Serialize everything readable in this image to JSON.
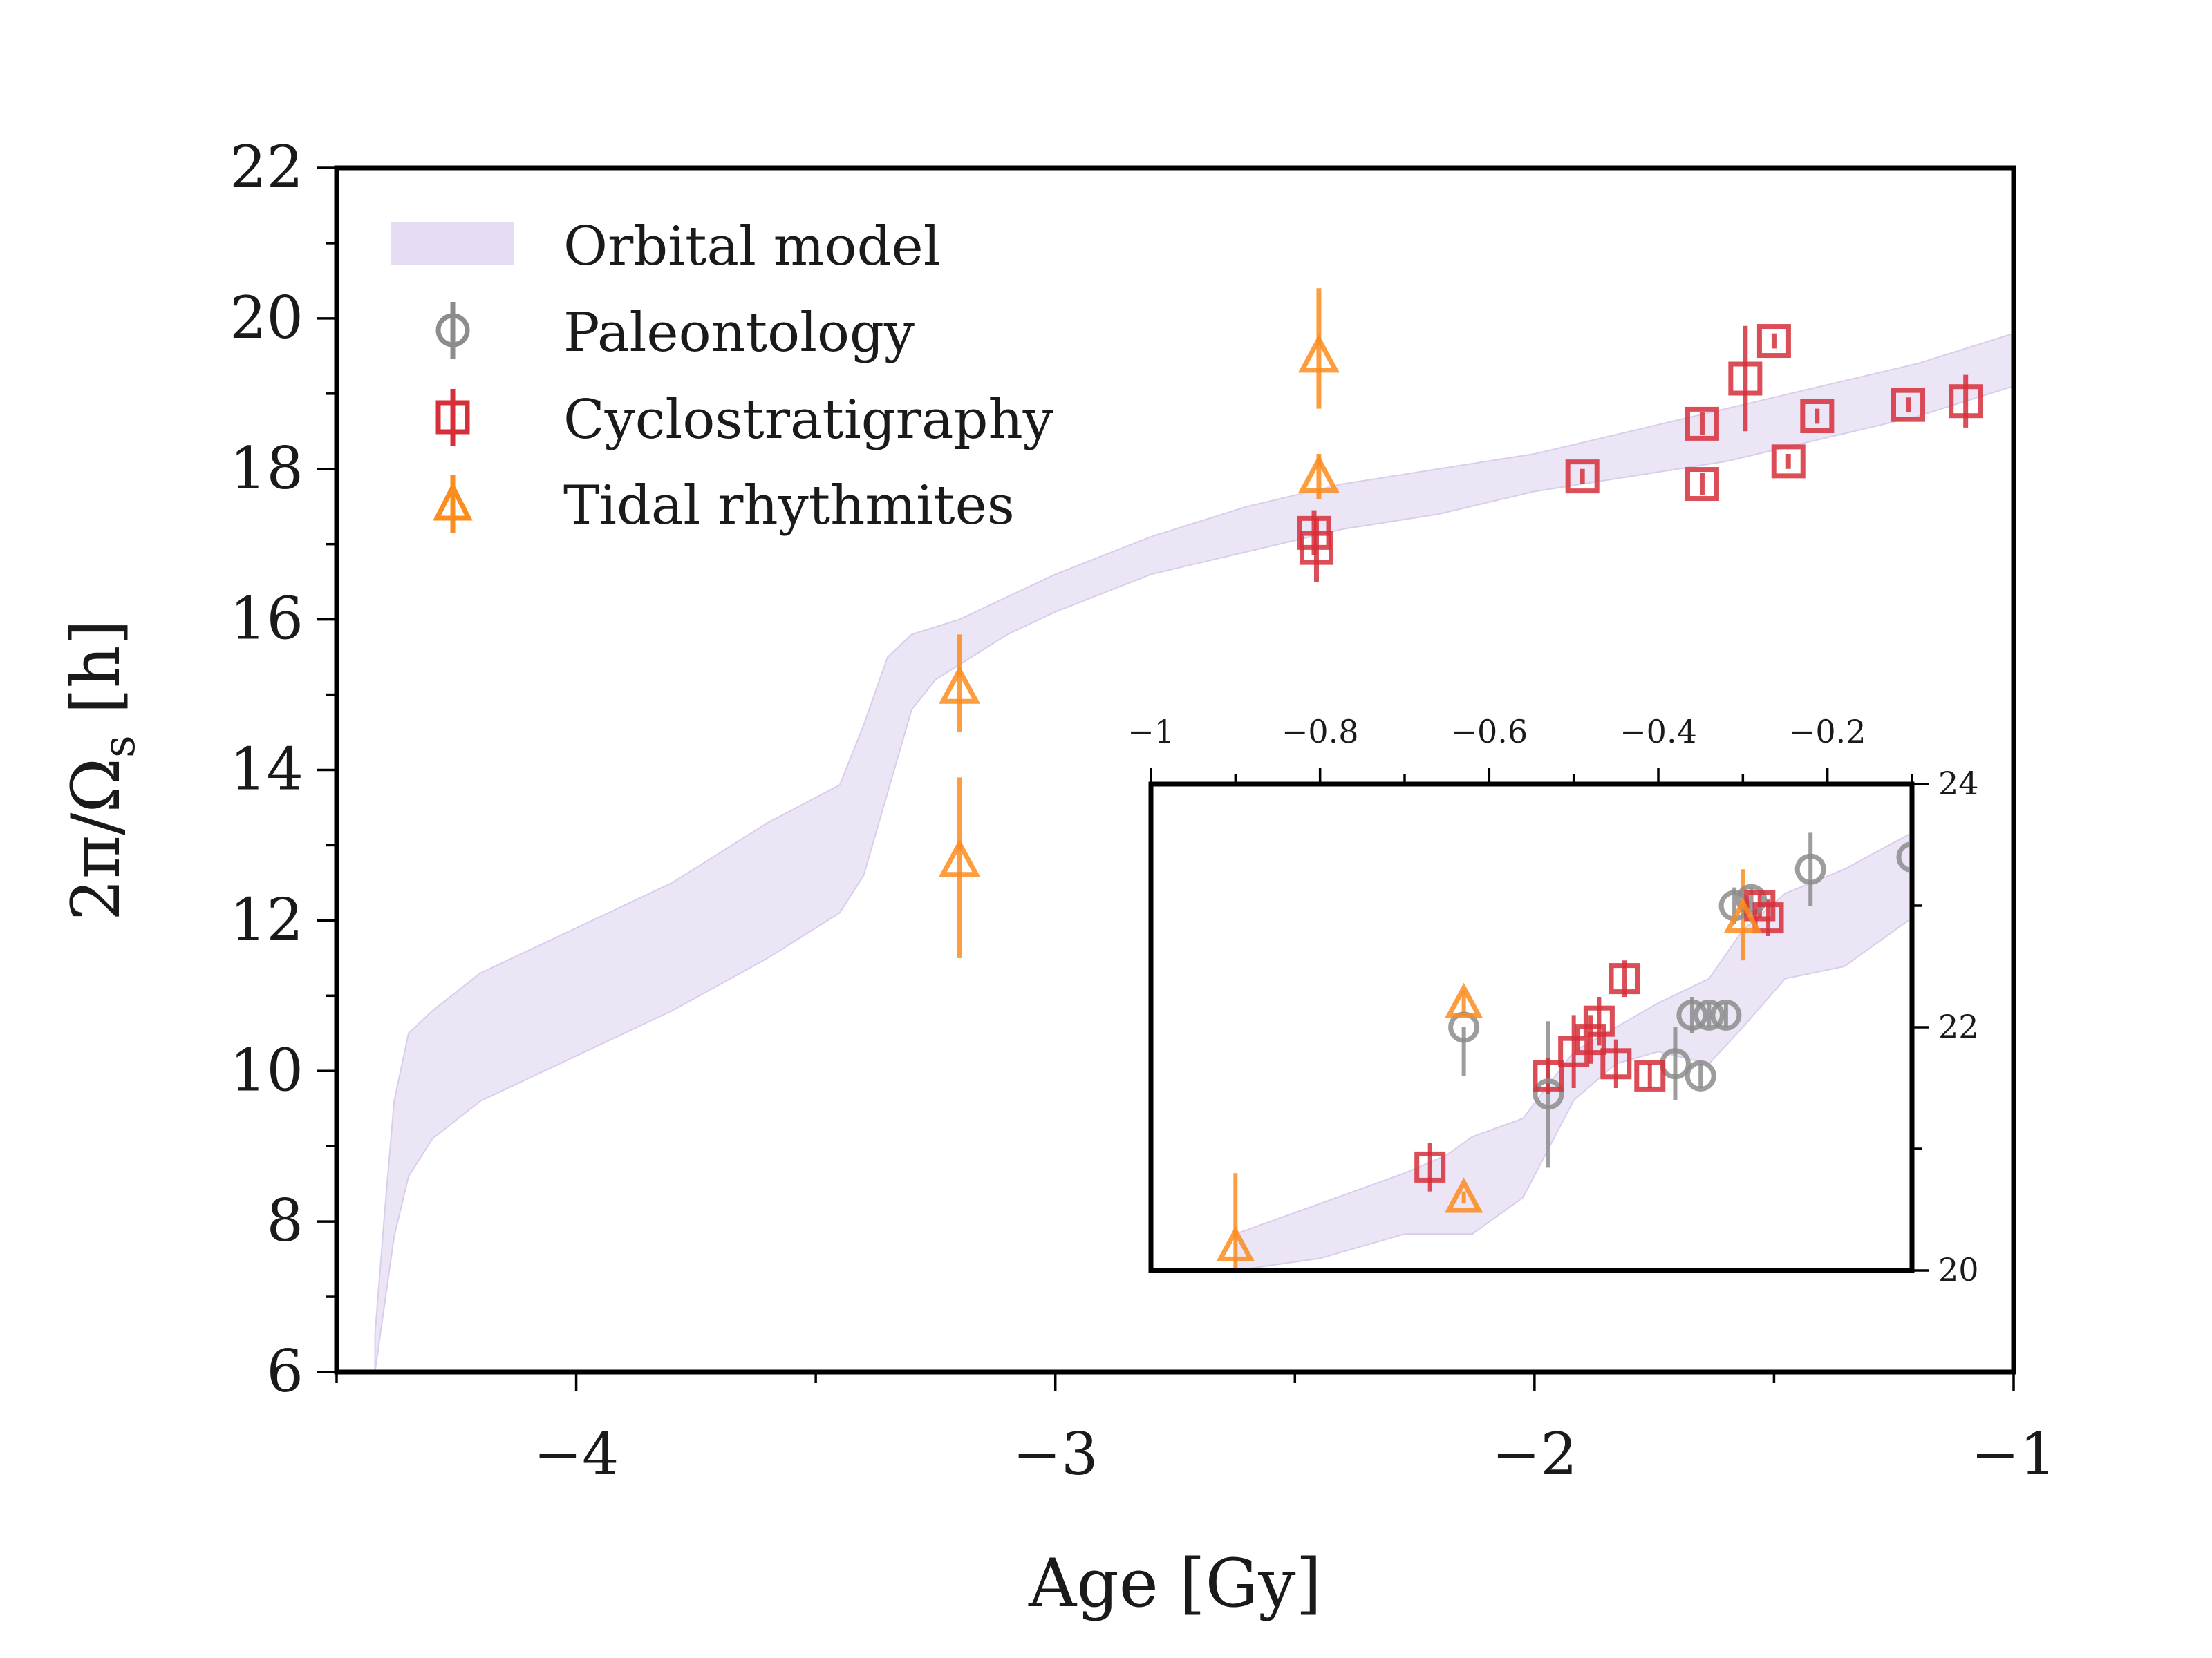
{
  "chart_data": [
    {
      "type": "scatter",
      "xlabel": "Age [Gy]",
      "ylabel": "2π/Ω",
      "ylabel_subscript": "s",
      "ylabel_unit": " [h]",
      "xlim": [
        -4.5,
        -1.0
      ],
      "ylim": [
        6,
        22
      ],
      "x_ticks": [
        -4,
        -3,
        -2,
        -1
      ],
      "x_tick_labels": [
        "−4",
        "−3",
        "−2",
        "−1"
      ],
      "y_ticks": [
        6,
        8,
        10,
        12,
        14,
        16,
        18,
        20,
        22
      ],
      "y_tick_labels": [
        "6",
        "8",
        "10",
        "12",
        "14",
        "16",
        "18",
        "20",
        "22"
      ],
      "legend": {
        "position": "top-left",
        "entries": [
          {
            "key": "model",
            "label": "Orbital model"
          },
          {
            "key": "paleo",
            "label": "Paleontology"
          },
          {
            "key": "cyclo",
            "label": "Cyclostratigraphy"
          },
          {
            "key": "tidal",
            "label": "Tidal rhythmites"
          }
        ]
      },
      "colors": {
        "model": "#e6dcf3",
        "paleo": "#8c8c8c",
        "cyclo": "#d62f3a",
        "tidal": "#fb8c1e"
      },
      "band": {
        "name": "Orbital model",
        "x": [
          -4.42,
          -4.4,
          -4.38,
          -4.35,
          -4.3,
          -4.2,
          -4.0,
          -3.8,
          -3.6,
          -3.45,
          -3.4,
          -3.35,
          -3.3,
          -3.25,
          -3.2,
          -3.1,
          -3.0,
          -2.8,
          -2.6,
          -2.4,
          -2.2,
          -2.0,
          -1.8,
          -1.6,
          -1.4,
          -1.2,
          -1.0
        ],
        "lower": [
          6.0,
          6.9,
          7.8,
          8.6,
          9.1,
          9.6,
          10.2,
          10.8,
          11.5,
          12.1,
          12.6,
          13.7,
          14.8,
          15.2,
          15.4,
          15.8,
          16.1,
          16.6,
          16.9,
          17.2,
          17.4,
          17.7,
          17.9,
          18.1,
          18.4,
          18.7,
          19.1
        ],
        "upper": [
          6.5,
          8.1,
          9.6,
          10.5,
          10.8,
          11.3,
          11.9,
          12.5,
          13.3,
          13.8,
          14.6,
          15.5,
          15.8,
          15.9,
          16.0,
          16.3,
          16.6,
          17.1,
          17.5,
          17.8,
          18.0,
          18.2,
          18.5,
          18.8,
          19.1,
          19.4,
          19.8
        ]
      },
      "series": [
        {
          "key": "tidal",
          "name": "Tidal rhythmites",
          "marker": "triangle",
          "points": [
            {
              "x": -3.2,
              "y": 15.1,
              "err_low": 0.6,
              "err_high": 0.7
            },
            {
              "x": -3.2,
              "y": 12.8,
              "err_low": 1.3,
              "err_high": 1.1
            },
            {
              "x": -2.45,
              "y": 19.5,
              "err_low": 0.7,
              "err_high": 0.9
            },
            {
              "x": -2.45,
              "y": 17.9,
              "err_low": 0.3,
              "err_high": 0.3
            }
          ]
        },
        {
          "key": "cyclo",
          "name": "Cyclostratigraphy",
          "marker": "square",
          "points": [
            {
              "x": -2.46,
              "y": 17.15,
              "err_low": 0.3,
              "err_high": 0.3
            },
            {
              "x": -2.455,
              "y": 16.95,
              "err_low": 0.45,
              "err_high": 0.4
            },
            {
              "x": -1.9,
              "y": 17.9,
              "err_low": 0.1,
              "err_high": 0.1
            },
            {
              "x": -1.65,
              "y": 18.6,
              "err_low": 0.15,
              "err_high": 0.15
            },
            {
              "x": -1.65,
              "y": 17.8,
              "err_low": 0.15,
              "err_high": 0.15
            },
            {
              "x": -1.56,
              "y": 19.2,
              "err_low": 0.7,
              "err_high": 0.7
            },
            {
              "x": -1.5,
              "y": 19.7,
              "err_low": 0.1,
              "err_high": 0.1
            },
            {
              "x": -1.47,
              "y": 18.1,
              "err_low": 0.1,
              "err_high": 0.1
            },
            {
              "x": -1.41,
              "y": 18.7,
              "err_low": 0.1,
              "err_high": 0.1
            },
            {
              "x": -1.22,
              "y": 18.85,
              "err_low": 0.1,
              "err_high": 0.1
            },
            {
              "x": -1.1,
              "y": 18.9,
              "err_low": 0.35,
              "err_high": 0.35
            }
          ]
        }
      ]
    },
    {
      "type": "scatter",
      "placement": "inset, lower-right",
      "xlim": [
        -1.0,
        -0.1
      ],
      "ylim": [
        20,
        24
      ],
      "x_ticks": [
        -1.0,
        -0.8,
        -0.6,
        -0.4,
        -0.2
      ],
      "x_tick_labels": [
        "−1",
        "−0.8",
        "−0.6",
        "−0.4",
        "−0.2"
      ],
      "y_ticks": [
        20,
        22,
        24
      ],
      "y_tick_labels": [
        "20",
        "22",
        "24"
      ],
      "band": {
        "x": [
          -0.9,
          -0.8,
          -0.7,
          -0.65,
          -0.62,
          -0.56,
          -0.5,
          -0.45,
          -0.4,
          -0.34,
          -0.3,
          -0.25,
          -0.18,
          -0.1
        ],
        "lower": [
          20.0,
          20.1,
          20.3,
          20.3,
          20.3,
          20.6,
          21.4,
          21.7,
          21.8,
          21.7,
          22.0,
          22.4,
          22.5,
          22.9
        ],
        "upper": [
          20.3,
          20.55,
          20.8,
          20.95,
          21.1,
          21.25,
          21.8,
          22.0,
          22.2,
          22.4,
          22.8,
          23.1,
          23.3,
          23.6
        ]
      },
      "series": [
        {
          "key": "paleo",
          "name": "Paleontology",
          "marker": "circle",
          "points": [
            {
              "x": -0.63,
              "y": 22.0,
              "err_low": 0.4,
              "err_high": 0.0
            },
            {
              "x": -0.53,
              "y": 21.45,
              "err_low": 0.6,
              "err_high": 0.6
            },
            {
              "x": -0.38,
              "y": 21.7,
              "err_low": 0.3,
              "err_high": 0.3
            },
            {
              "x": -0.36,
              "y": 22.1,
              "err_low": 0.15,
              "err_high": 0.15
            },
            {
              "x": -0.35,
              "y": 21.6,
              "err_low": 0.1,
              "err_high": 0.1
            },
            {
              "x": -0.34,
              "y": 22.1,
              "err_low": 0.1,
              "err_high": 0.1
            },
            {
              "x": -0.32,
              "y": 22.1,
              "err_low": 0.1,
              "err_high": 0.1
            },
            {
              "x": -0.31,
              "y": 23.0,
              "err_low": 0.15,
              "err_high": 0.15
            },
            {
              "x": -0.29,
              "y": 23.05,
              "err_low": 0.1,
              "err_high": 0.1
            },
            {
              "x": -0.22,
              "y": 23.3,
              "err_low": 0.3,
              "err_high": 0.3
            },
            {
              "x": -0.1,
              "y": 23.4,
              "err_low": 0.1,
              "err_high": 0.1
            }
          ]
        },
        {
          "key": "cyclo",
          "name": "Cyclostratigraphy",
          "marker": "square",
          "points": [
            {
              "x": -0.67,
              "y": 20.85,
              "err_low": 0.2,
              "err_high": 0.2
            },
            {
              "x": -0.53,
              "y": 21.6,
              "err_low": 0.15,
              "err_high": 0.15
            },
            {
              "x": -0.5,
              "y": 21.8,
              "err_low": 0.3,
              "err_high": 0.3
            },
            {
              "x": -0.48,
              "y": 21.9,
              "err_low": 0.2,
              "err_high": 0.2
            },
            {
              "x": -0.47,
              "y": 22.05,
              "err_low": 0.2,
              "err_high": 0.2
            },
            {
              "x": -0.45,
              "y": 21.7,
              "err_low": 0.2,
              "err_high": 0.2
            },
            {
              "x": -0.44,
              "y": 22.4,
              "err_low": 0.15,
              "err_high": 0.15
            },
            {
              "x": -0.41,
              "y": 21.6,
              "err_low": 0.1,
              "err_high": 0.1
            },
            {
              "x": -0.28,
              "y": 23.0,
              "err_low": 0.1,
              "err_high": 0.1
            },
            {
              "x": -0.27,
              "y": 22.9,
              "err_low": 0.15,
              "err_high": 0.15
            }
          ]
        },
        {
          "key": "tidal",
          "name": "Tidal rhythmites",
          "marker": "triangle",
          "points": [
            {
              "x": -0.9,
              "y": 20.2,
              "err_low": 0.5,
              "err_high": 0.6
            },
            {
              "x": -0.63,
              "y": 22.2,
              "err_low": 0.1,
              "err_high": 0.1
            },
            {
              "x": -0.63,
              "y": 20.6,
              "err_low": 0.05,
              "err_high": 0.05
            },
            {
              "x": -0.3,
              "y": 22.9,
              "err_low": 0.35,
              "err_high": 0.4
            }
          ]
        }
      ]
    }
  ]
}
